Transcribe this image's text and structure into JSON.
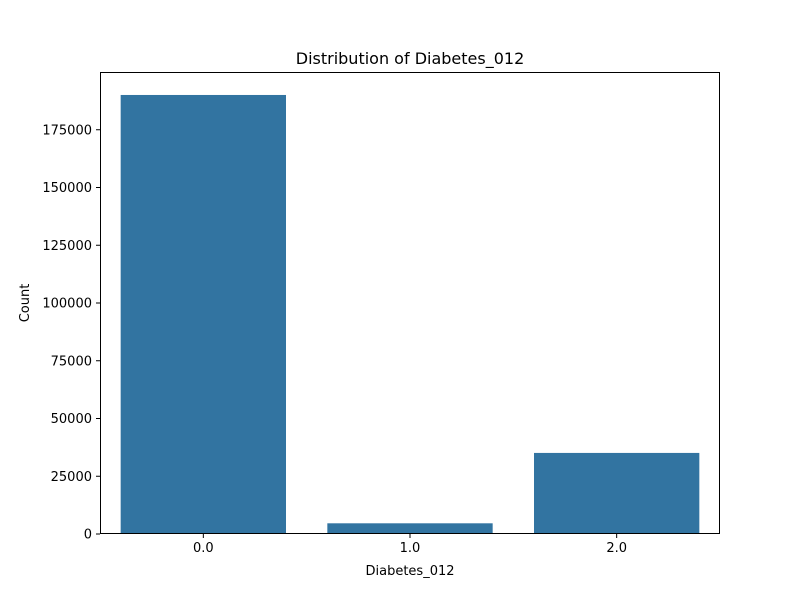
{
  "chart_data": {
    "type": "bar",
    "title": "Distribution of Diabetes_012",
    "xlabel": "Diabetes_012",
    "ylabel": "Count",
    "categories": [
      "0.0",
      "1.0",
      "2.0"
    ],
    "values": [
      190055,
      4631,
      35097
    ],
    "ylim": [
      0,
      200000
    ],
    "yticks": [
      0,
      25000,
      50000,
      75000,
      100000,
      125000,
      150000,
      175000
    ],
    "ytick_labels": [
      "0",
      "25000",
      "50000",
      "75000",
      "100000",
      "125000",
      "150000",
      "175000"
    ],
    "grid": false,
    "legend": "none",
    "bar_color": "#3274a1"
  }
}
